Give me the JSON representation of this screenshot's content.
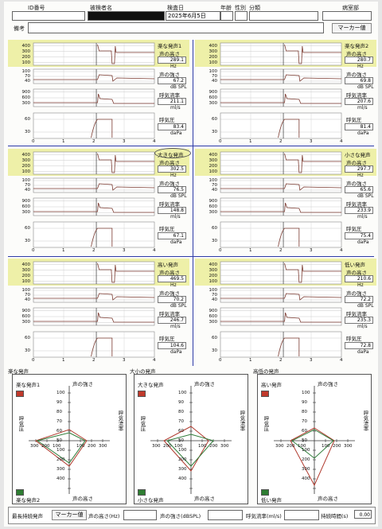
{
  "header": {
    "id_label": "ID番号",
    "name_label": "被検者名",
    "date_label": "検査日",
    "date_value": "2025年6月5日",
    "age_label": "年齢",
    "sex_label": "性別",
    "class_label": "分類",
    "ward_label": "病室部",
    "notes_label": "備考",
    "marker_button": "マーカー値"
  },
  "metric_labels": {
    "pitch": "声の高さ",
    "pitch_unit": "Hz",
    "intensity": "声の強さ",
    "intensity_unit": "dB SPL",
    "flow": "呼気流率",
    "flow_unit": "ml/s",
    "pressure": "呼気圧",
    "pressure_unit": "daPa"
  },
  "panels": [
    {
      "title": "楽な発声1",
      "pitch": "289.1",
      "intensity": "67.2",
      "flow": "211.1",
      "pressure": "83.4",
      "circled": false
    },
    {
      "title": "楽な発声2",
      "pitch": "280.7",
      "intensity": "69.8",
      "flow": "207.6",
      "pressure": "81.4",
      "circled": false
    },
    {
      "title": "大きな発声",
      "pitch": "302.5",
      "intensity": "76.5",
      "flow": "148.8",
      "pressure": "67.1",
      "circled": true
    },
    {
      "title": "小さな発声",
      "pitch": "297.7",
      "intensity": "65.6",
      "flow": "233.9",
      "pressure": "75.4",
      "circled": false
    },
    {
      "title": "高い発声",
      "pitch": "469.5",
      "intensity": "70.2",
      "flow": "246.7",
      "pressure": "104.6",
      "circled": false
    },
    {
      "title": "低い発声",
      "pitch": "210.6",
      "intensity": "72.2",
      "flow": "235.3",
      "pressure": "72.8",
      "circled": false
    }
  ],
  "axis": {
    "pitch_ticks": [
      "400",
      "300",
      "200",
      "100"
    ],
    "intensity_ticks": [
      "100",
      "70",
      "40"
    ],
    "flow_ticks": [
      "900",
      "600",
      "300"
    ],
    "pressure_ticks": [
      "60",
      "30"
    ],
    "x_ticks": [
      "0",
      "1",
      "2",
      "3",
      "4"
    ]
  },
  "radar": [
    {
      "title": "楽な発声",
      "top_legend": "楽な発声1",
      "bottom_legend": "楽な発声2",
      "legend_top_color": "#c0392b",
      "legend_bottom_color": "#2e7d32"
    },
    {
      "title": "大小の発声",
      "top_legend": "大きな発声",
      "bottom_legend": "小さな発声",
      "legend_top_color": "#c0392b",
      "legend_bottom_color": "#2e7d32"
    },
    {
      "title": "高低の発声",
      "top_legend": "高い発声",
      "bottom_legend": "低い発声",
      "legend_top_color": "#c0392b",
      "legend_bottom_color": "#2e7d32"
    }
  ],
  "radar_labels": {
    "top": "声の強さ",
    "bottom": "声の高さ",
    "left": "呼気圧",
    "right": "呼気流率",
    "vert_ticks": [
      "100",
      "90",
      "80",
      "70",
      "60",
      "50",
      "100",
      "200",
      "300",
      "400"
    ],
    "horiz_ticks_left": [
      "300",
      "200",
      "100"
    ],
    "horiz_ticks_right": [
      "100",
      "200",
      "300"
    ]
  },
  "footer": {
    "longest_label": "最長持続発声",
    "marker_button": "マーカー値",
    "pitch_label": "声の高さ(Hz)",
    "intensity_label": "声の強さ(dBSPL)",
    "flow_label": "呼気流率(ml/s)",
    "duration_label": "持続時間(s)",
    "duration_value": "0.00"
  },
  "colors": {
    "highlight": "#eef0a8",
    "trace": "#7b3a30",
    "divider": "#2d3aa8",
    "radar_red": "#b03a2e",
    "radar_green": "#2f7d3a"
  }
}
